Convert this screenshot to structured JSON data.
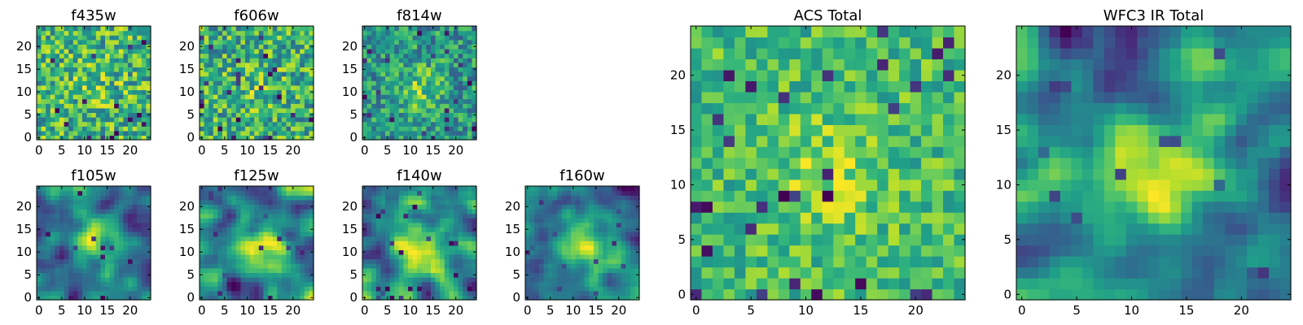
{
  "chart_data": [
    {
      "type": "heatmap",
      "title": "f435w",
      "xlim": [
        -0.5,
        24.5
      ],
      "ylim": [
        -0.5,
        24.5
      ],
      "xticks": [
        "0",
        "5",
        "10",
        "15",
        "20"
      ],
      "yticks": [
        "0",
        "5",
        "10",
        "15",
        "20"
      ],
      "grid": false,
      "colormap": "viridis",
      "values": [],
      "pattern": "noise"
    },
    {
      "type": "heatmap",
      "title": "f606w",
      "xlim": [
        -0.5,
        24.5
      ],
      "ylim": [
        -0.5,
        24.5
      ],
      "xticks": [
        "0",
        "5",
        "10",
        "15",
        "20"
      ],
      "yticks": [
        "0",
        "5",
        "10",
        "15",
        "20"
      ],
      "grid": false,
      "colormap": "viridis",
      "values": [],
      "pattern": "noise"
    },
    {
      "type": "heatmap",
      "title": "f814w",
      "xlim": [
        -0.5,
        24.5
      ],
      "ylim": [
        -0.5,
        24.5
      ],
      "xticks": [
        "0",
        "5",
        "10",
        "15",
        "20"
      ],
      "yticks": [
        "0",
        "5",
        "10",
        "15",
        "20"
      ],
      "grid": false,
      "colormap": "viridis",
      "values": [],
      "pattern": "noise-center"
    },
    {
      "type": "heatmap",
      "title": "f105w",
      "xlim": [
        -0.5,
        24.5
      ],
      "ylim": [
        -0.5,
        24.5
      ],
      "xticks": [
        "0",
        "5",
        "10",
        "15",
        "20"
      ],
      "yticks": [
        "0",
        "5",
        "10",
        "15",
        "20"
      ],
      "grid": false,
      "colormap": "viridis",
      "values": [],
      "pattern": "smooth"
    },
    {
      "type": "heatmap",
      "title": "f125w",
      "xlim": [
        -0.5,
        24.5
      ],
      "ylim": [
        -0.5,
        24.5
      ],
      "xticks": [
        "0",
        "5",
        "10",
        "15",
        "20"
      ],
      "yticks": [
        "0",
        "5",
        "10",
        "15",
        "20"
      ],
      "grid": false,
      "colormap": "viridis",
      "values": [],
      "pattern": "smooth"
    },
    {
      "type": "heatmap",
      "title": "f140w",
      "xlim": [
        -0.5,
        24.5
      ],
      "ylim": [
        -0.5,
        24.5
      ],
      "xticks": [
        "0",
        "5",
        "10",
        "15",
        "20"
      ],
      "yticks": [
        "0",
        "5",
        "10",
        "15",
        "20"
      ],
      "grid": false,
      "colormap": "viridis",
      "values": [],
      "pattern": "smooth"
    },
    {
      "type": "heatmap",
      "title": "f160w",
      "xlim": [
        -0.5,
        24.5
      ],
      "ylim": [
        -0.5,
        24.5
      ],
      "xticks": [
        "0",
        "5",
        "10",
        "15",
        "20"
      ],
      "yticks": [
        "0",
        "5",
        "10",
        "15",
        "20"
      ],
      "grid": false,
      "colormap": "viridis",
      "values": [],
      "pattern": "smooth-center"
    },
    {
      "type": "heatmap",
      "title": "ACS Total",
      "xlim": [
        -0.5,
        24.5
      ],
      "ylim": [
        -0.5,
        24.5
      ],
      "xticks": [
        "0",
        "5",
        "10",
        "15",
        "20"
      ],
      "yticks": [
        "0",
        "5",
        "10",
        "15",
        "20"
      ],
      "grid": false,
      "colormap": "viridis",
      "values": [],
      "pattern": "noise-bright"
    },
    {
      "type": "heatmap",
      "title": "WFC3 IR Total",
      "xlim": [
        -0.5,
        24.5
      ],
      "ylim": [
        -0.5,
        24.5
      ],
      "xticks": [
        "0",
        "5",
        "10",
        "15",
        "20"
      ],
      "yticks": [
        "0",
        "5",
        "10",
        "15",
        "20"
      ],
      "grid": false,
      "colormap": "viridis",
      "values": [],
      "pattern": "smooth-wfc3"
    }
  ]
}
